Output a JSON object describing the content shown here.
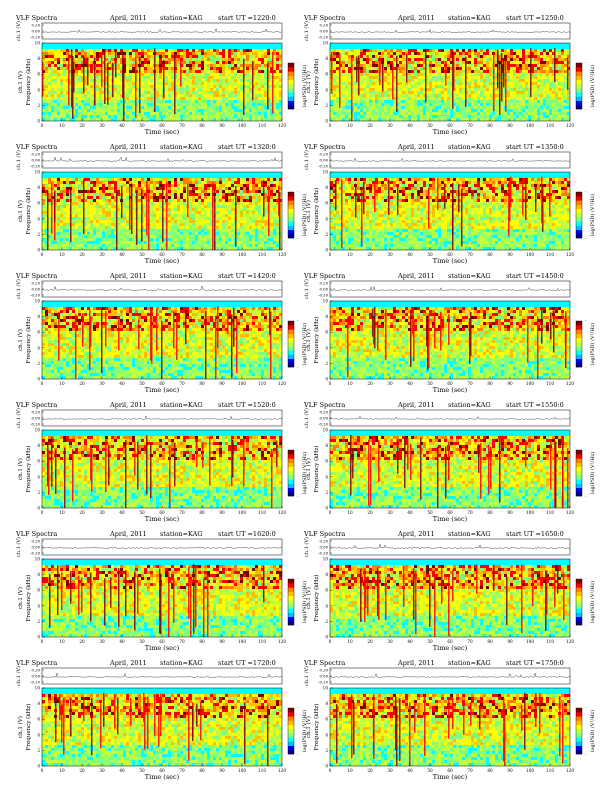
{
  "colors": {
    "background": "#7fffd4",
    "colormap": [
      "#00007f",
      "#0000ff",
      "#00bfff",
      "#00ffff",
      "#7fff7f",
      "#bfff3f",
      "#ffff00",
      "#ffbf00",
      "#ff7f00",
      "#ff0000",
      "#7f0000"
    ]
  },
  "chart_data": [
    {
      "type": "heatmap",
      "title": "VLF Spectra",
      "date": "April, 2011",
      "station": "station=KAG",
      "start": "start  UT =1220:0",
      "xlabel": "Time  (sec)",
      "ylabel": "Frequency  (kHz)",
      "ch_label": "ch.1 (V)",
      "cb_label": "log(PSD) (V²/Hz)",
      "xlim": [
        0,
        120
      ],
      "ylim": [
        0,
        10
      ],
      "xticks": [
        0,
        10,
        20,
        30,
        40,
        50,
        60,
        70,
        80,
        90,
        100,
        110,
        120
      ],
      "yticks": [
        0,
        2,
        4,
        6,
        8,
        10
      ],
      "ch_ticks": [
        "0.20",
        "0.00",
        "-0.20"
      ],
      "ch_lim": [
        -0.2,
        0.2
      ],
      "cb_ticks": [
        "-",
        "-"
      ]
    },
    {
      "type": "heatmap",
      "title": "VLF Spectra",
      "date": "April, 2011",
      "station": "station=KAG",
      "start": "start  UT =1250:0",
      "xlabel": "Time  (sec)",
      "ylabel": "Frequency  (kHz)",
      "ch_label": "ch.1 (V)",
      "cb_label": "log(PSD) (V²/Hz)",
      "xlim": [
        0,
        120
      ],
      "ylim": [
        0,
        10
      ],
      "xticks": [
        0,
        10,
        20,
        30,
        40,
        50,
        60,
        70,
        80,
        90,
        100,
        110,
        120
      ],
      "yticks": [
        0,
        2,
        4,
        6,
        8,
        10
      ],
      "ch_ticks": [
        "0.20",
        "0.00",
        "-0.20"
      ],
      "ch_lim": [
        -0.2,
        0.2
      ],
      "cb_ticks": [
        "-",
        "-"
      ]
    },
    {
      "type": "heatmap",
      "title": "VLF Spectra",
      "date": "April, 2011",
      "station": "station=KAG",
      "start": "start  UT =1320:0",
      "xlabel": "Time  (sec)",
      "ylabel": "Frequency  (kHz)",
      "ch_label": "ch.1 (V)",
      "cb_label": "log(PSD) (V²/Hz)",
      "xlim": [
        0,
        120
      ],
      "ylim": [
        0,
        10
      ],
      "xticks": [
        0,
        10,
        20,
        30,
        40,
        50,
        60,
        70,
        80,
        90,
        100,
        110,
        120
      ],
      "yticks": [
        0,
        2,
        4,
        6,
        8,
        10
      ],
      "ch_ticks": [
        "0.20",
        "0.00",
        "-0.20"
      ],
      "ch_lim": [
        -0.2,
        0.2
      ],
      "cb_ticks": [
        "-",
        "-"
      ]
    },
    {
      "type": "heatmap",
      "title": "VLF Spectra",
      "date": "April, 2011",
      "station": "station=KAG",
      "start": "start  UT =1350:0",
      "xlabel": "Time  (sec)",
      "ylabel": "Frequency  (kHz)",
      "ch_label": "ch.1 (V)",
      "cb_label": "log(PSD) (V²/Hz)",
      "xlim": [
        0,
        120
      ],
      "ylim": [
        0,
        10
      ],
      "xticks": [
        0,
        10,
        20,
        30,
        40,
        50,
        60,
        70,
        80,
        90,
        100,
        110,
        120
      ],
      "yticks": [
        0,
        2,
        4,
        6,
        8,
        10
      ],
      "ch_ticks": [
        "0.20",
        "0.00",
        "-0.20"
      ],
      "ch_lim": [
        -0.2,
        0.2
      ],
      "cb_ticks": [
        "-",
        "-"
      ]
    },
    {
      "type": "heatmap",
      "title": "VLF Spectra",
      "date": "April, 2011",
      "station": "station=KAG",
      "start": "start  UT =1420:0",
      "xlabel": "Time  (sec)",
      "ylabel": "Frequency  (kHz)",
      "ch_label": "ch.1 (V)",
      "cb_label": "log(PSD) (V²/Hz)",
      "xlim": [
        0,
        120
      ],
      "ylim": [
        0,
        10
      ],
      "xticks": [
        0,
        10,
        20,
        30,
        40,
        50,
        60,
        70,
        80,
        90,
        100,
        110,
        120
      ],
      "yticks": [
        0,
        2,
        4,
        6,
        8,
        10
      ],
      "ch_ticks": [
        "0.20",
        "0.00",
        "-0.20"
      ],
      "ch_lim": [
        -0.2,
        0.2
      ],
      "cb_ticks": [
        "-",
        "-"
      ]
    },
    {
      "type": "heatmap",
      "title": "VLF Spectra",
      "date": "April, 2011",
      "station": "station=KAG",
      "start": "start  UT =1450:0",
      "xlabel": "Time  (sec)",
      "ylabel": "Frequency  (kHz)",
      "ch_label": "ch.1 (V)",
      "cb_label": "log(PSD) (V²/Hz)",
      "xlim": [
        0,
        120
      ],
      "ylim": [
        0,
        10
      ],
      "xticks": [
        0,
        10,
        20,
        30,
        40,
        50,
        60,
        70,
        80,
        90,
        100,
        110,
        120
      ],
      "yticks": [
        0,
        2,
        4,
        6,
        8,
        10
      ],
      "ch_ticks": [
        "0.20",
        "0.00",
        "-0.20"
      ],
      "ch_lim": [
        -0.2,
        0.2
      ],
      "cb_ticks": [
        "-",
        "-"
      ]
    },
    {
      "type": "heatmap",
      "title": "VLF Spectra",
      "date": "April, 2011",
      "station": "station=KAG",
      "start": "start  UT =1520:0",
      "xlabel": "Time  (sec)",
      "ylabel": "Frequency  (kHz)",
      "ch_label": "ch.1 (V)",
      "cb_label": "log(PSD) (V²/Hz)",
      "xlim": [
        0,
        120
      ],
      "ylim": [
        0,
        10
      ],
      "xticks": [
        0,
        10,
        20,
        30,
        40,
        50,
        60,
        70,
        80,
        90,
        100,
        110,
        120
      ],
      "yticks": [
        0,
        2,
        4,
        6,
        8,
        10
      ],
      "ch_ticks": [
        "0.20",
        "0.00",
        "-0.20"
      ],
      "ch_lim": [
        -0.2,
        0.2
      ],
      "cb_ticks": [
        "-",
        "-"
      ]
    },
    {
      "type": "heatmap",
      "title": "VLF Spectra",
      "date": "April, 2011",
      "station": "station=KAG",
      "start": "start  UT =1550:0",
      "xlabel": "Time  (sec)",
      "ylabel": "Frequency  (kHz)",
      "ch_label": "ch.1 (V)",
      "cb_label": "log(PSD) (V²/Hz)",
      "xlim": [
        0,
        120
      ],
      "ylim": [
        0,
        10
      ],
      "xticks": [
        0,
        10,
        20,
        30,
        40,
        50,
        60,
        70,
        80,
        90,
        100,
        110,
        120
      ],
      "yticks": [
        0,
        2,
        4,
        6,
        8,
        10
      ],
      "ch_ticks": [
        "0.20",
        "0.00",
        "-0.20"
      ],
      "ch_lim": [
        -0.2,
        0.2
      ],
      "cb_ticks": [
        "-",
        "-"
      ]
    },
    {
      "type": "heatmap",
      "title": "VLF Spectra",
      "date": "April, 2011",
      "station": "station=KAG",
      "start": "start  UT =1620:0",
      "xlabel": "Time  (sec)",
      "ylabel": "Frequency  (kHz)",
      "ch_label": "ch.1 (V)",
      "cb_label": "log(PSD) (V²/Hz)",
      "xlim": [
        0,
        120
      ],
      "ylim": [
        0,
        10
      ],
      "xticks": [
        0,
        10,
        20,
        30,
        40,
        50,
        60,
        70,
        80,
        90,
        100,
        110,
        120
      ],
      "yticks": [
        0,
        2,
        4,
        6,
        8,
        10
      ],
      "ch_ticks": [
        "0.20",
        "0.00",
        "-0.20"
      ],
      "ch_lim": [
        -0.2,
        0.2
      ],
      "cb_ticks": [
        "-",
        "-"
      ]
    },
    {
      "type": "heatmap",
      "title": "VLF Spectra",
      "date": "April, 2011",
      "station": "station=KAG",
      "start": "start  UT =1650:0",
      "xlabel": "Time  (sec)",
      "ylabel": "Frequency  (kHz)",
      "ch_label": "ch.1 (V)",
      "cb_label": "log(PSD) (V²/Hz)",
      "xlim": [
        0,
        120
      ],
      "ylim": [
        0,
        10
      ],
      "xticks": [
        0,
        10,
        20,
        30,
        40,
        50,
        60,
        70,
        80,
        90,
        100,
        110,
        120
      ],
      "yticks": [
        0,
        2,
        4,
        6,
        8,
        10
      ],
      "ch_ticks": [
        "0.20",
        "0.00",
        "-0.20"
      ],
      "ch_lim": [
        -0.2,
        0.2
      ],
      "cb_ticks": [
        "-",
        "-"
      ]
    },
    {
      "type": "heatmap",
      "title": "VLF Spectra",
      "date": "April, 2011",
      "station": "station=KAG",
      "start": "start  UT =1720:0",
      "xlabel": "Time  (sec)",
      "ylabel": "Frequency  (kHz)",
      "ch_label": "ch.1 (V)",
      "cb_label": "log(PSD) (V²/Hz)",
      "xlim": [
        0,
        120
      ],
      "ylim": [
        0,
        10
      ],
      "xticks": [
        0,
        10,
        20,
        30,
        40,
        50,
        60,
        70,
        80,
        90,
        100,
        110,
        120
      ],
      "yticks": [
        0,
        2,
        4,
        6,
        8,
        10
      ],
      "ch_ticks": [
        "0.20",
        "0.00",
        "-0.20"
      ],
      "ch_lim": [
        -0.2,
        0.2
      ],
      "cb_ticks": [
        "-",
        "-"
      ]
    },
    {
      "type": "heatmap",
      "title": "VLF Spectra",
      "date": "April, 2011",
      "station": "station=KAG",
      "start": "start  UT =1750:0",
      "xlabel": "Time  (sec)",
      "ylabel": "Frequency  (kHz)",
      "ch_label": "ch.1 (V)",
      "cb_label": "log(PSD) (V²/Hz)",
      "xlim": [
        0,
        120
      ],
      "ylim": [
        0,
        10
      ],
      "xticks": [
        0,
        10,
        20,
        30,
        40,
        50,
        60,
        70,
        80,
        90,
        100,
        110,
        120
      ],
      "yticks": [
        0,
        2,
        4,
        6,
        8,
        10
      ],
      "ch_ticks": [
        "0.20",
        "0.00",
        "-0.20"
      ],
      "ch_lim": [
        -0.2,
        0.2
      ],
      "cb_ticks": [
        "-",
        "-"
      ]
    }
  ]
}
